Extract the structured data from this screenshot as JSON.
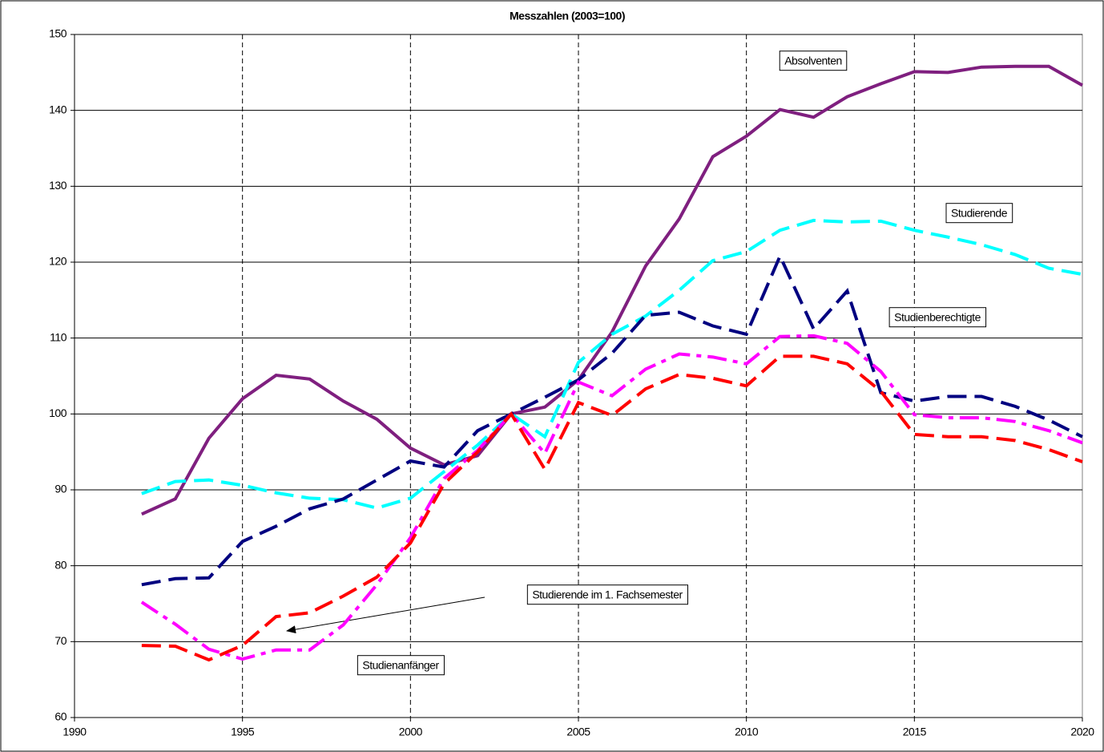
{
  "chart_data": {
    "type": "line",
    "title": "Messzahlen (2003=100)",
    "x": [
      1992,
      1993,
      1994,
      1995,
      1996,
      1997,
      1998,
      1999,
      2000,
      2001,
      2002,
      2003,
      2004,
      2005,
      2006,
      2007,
      2008,
      2009,
      2010,
      2011,
      2012,
      2013,
      2014,
      2015,
      2016,
      2017,
      2018,
      2019,
      2020
    ],
    "series": [
      {
        "name": "Absolventen",
        "color": "#7f1f7f",
        "line_style": "solid",
        "values": [
          86.8,
          88.8,
          96.8,
          102,
          105.1,
          104.6,
          101.7,
          99.3,
          95.5,
          93.3,
          94.5,
          100,
          100.9,
          104.5,
          110.8,
          119.5,
          125.7,
          133.9,
          136.6,
          140.1,
          139.1,
          141.8,
          143.5,
          145.1,
          145,
          145.7,
          145.8,
          145.8,
          143.3
        ]
      },
      {
        "name": "Studierende",
        "color": "#00ffff",
        "line_style": "dashed",
        "values": [
          89.5,
          91.1,
          91.3,
          90.6,
          89.6,
          88.9,
          88.7,
          87.6,
          88.9,
          92.4,
          95.9,
          100,
          97,
          106.8,
          110.5,
          112.9,
          116.3,
          120.2,
          121.4,
          124.2,
          125.5,
          125.3,
          125.4,
          124.2,
          123.3,
          122.3,
          121,
          119.2,
          118.4
        ]
      },
      {
        "name": "Studienberechtigte",
        "color": "#000080",
        "line_style": "dashed",
        "values": [
          77.5,
          78.3,
          78.4,
          83.2,
          85.2,
          87.5,
          88.8,
          91.3,
          93.8,
          93,
          97.8,
          100,
          102.2,
          104.5,
          108,
          113,
          113.4,
          111.6,
          110.5,
          120.8,
          111.2,
          116.2,
          102.8,
          101.7,
          102.3,
          102.3,
          101,
          99.2,
          97
        ]
      },
      {
        "name": "Studierende im 1. Fachsemester",
        "color": "#ff00ff",
        "line_style": "dashdot",
        "values": [
          75.2,
          72.3,
          69,
          67.7,
          68.9,
          68.9,
          72.2,
          77.5,
          83.7,
          91.5,
          95.2,
          100,
          94.8,
          104.2,
          102.4,
          105.9,
          107.9,
          107.5,
          106.6,
          110.2,
          110.3,
          109.3,
          105.6,
          99.9,
          99.5,
          99.5,
          99,
          97.8,
          96.2
        ]
      },
      {
        "name": "Studienanfänger",
        "color": "#ff0000",
        "line_style": "dashed",
        "values": [
          69.5,
          69.4,
          67.6,
          69.5,
          73.3,
          73.8,
          76,
          78.5,
          83,
          90.8,
          95,
          100,
          92.7,
          101.5,
          99.8,
          103.3,
          105.2,
          104.7,
          103.7,
          107.6,
          107.6,
          106.6,
          103,
          97.3,
          97,
          97,
          96.5,
          95.3,
          93.7
        ]
      }
    ],
    "xlim": [
      1990,
      2020
    ],
    "xticks": [
      1990,
      1995,
      2000,
      2005,
      2010,
      2015,
      2020
    ],
    "ylim": [
      60,
      150
    ],
    "yticks": [
      60,
      70,
      80,
      90,
      100,
      110,
      120,
      130,
      140,
      150
    ],
    "grid": true
  }
}
